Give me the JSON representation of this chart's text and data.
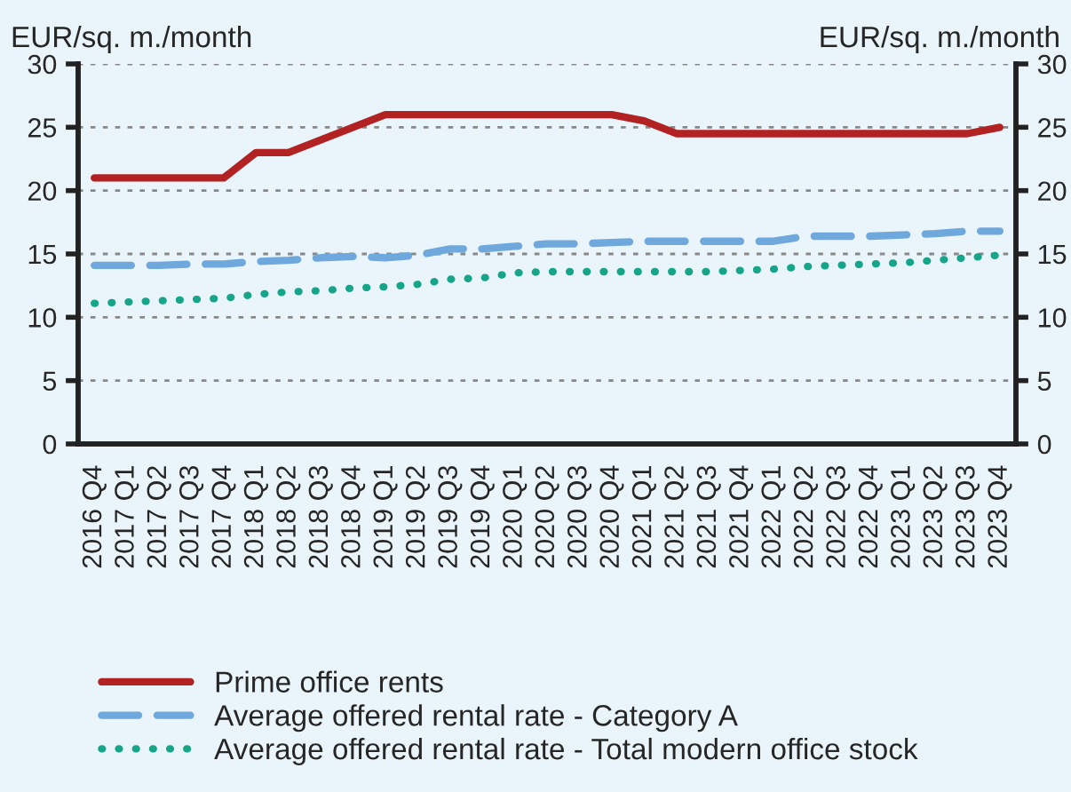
{
  "chart_data": {
    "type": "line",
    "ylabel": "EUR/sq. m./month",
    "y2label": "EUR/sq. m./month",
    "categories": [
      "2016 Q4",
      "2017 Q1",
      "2017 Q2",
      "2017 Q3",
      "2017 Q4",
      "2018 Q1",
      "2018 Q2",
      "2018 Q3",
      "2018 Q4",
      "2019 Q1",
      "2019 Q2",
      "2019 Q3",
      "2019 Q4",
      "2020 Q1",
      "2020 Q2",
      "2020 Q3",
      "2020 Q4",
      "2021 Q1",
      "2021 Q2",
      "2021 Q3",
      "2021 Q4",
      "2022 Q1",
      "2022 Q2",
      "2022 Q3",
      "2022 Q4",
      "2023 Q1",
      "2023 Q2",
      "2023 Q3",
      "2023 Q4"
    ],
    "series": [
      {
        "name": "Prime office rents",
        "color": "#b22222",
        "line_style": "solid",
        "values": [
          21,
          21,
          21,
          21,
          21,
          23,
          23,
          24,
          25,
          26,
          26,
          26,
          26,
          26,
          26,
          26,
          26,
          25.5,
          24.5,
          24.5,
          24.5,
          24.5,
          24.5,
          24.5,
          24.5,
          24.5,
          24.5,
          24.5,
          25
        ]
      },
      {
        "name": "Average offered rental rate - Category A",
        "color": "#6fa8dc",
        "line_style": "dashed",
        "values": [
          14.1,
          14.1,
          14.1,
          14.2,
          14.2,
          14.4,
          14.5,
          14.7,
          14.8,
          14.7,
          14.9,
          15.4,
          15.4,
          15.6,
          15.8,
          15.8,
          15.9,
          16.0,
          16.0,
          16.0,
          16.0,
          16.0,
          16.4,
          16.4,
          16.4,
          16.5,
          16.6,
          16.8,
          16.8
        ]
      },
      {
        "name": "Average offered rental rate - Total modern office stock",
        "color": "#17a589",
        "line_style": "dotted",
        "values": [
          11.1,
          11.2,
          11.3,
          11.4,
          11.5,
          11.8,
          12.0,
          12.1,
          12.3,
          12.4,
          12.6,
          13.0,
          13.1,
          13.5,
          13.6,
          13.6,
          13.6,
          13.6,
          13.6,
          13.6,
          13.7,
          13.8,
          14.0,
          14.1,
          14.2,
          14.3,
          14.5,
          14.7,
          14.9
        ]
      }
    ],
    "ylim": [
      0,
      30
    ],
    "yticks": [
      0,
      5,
      10,
      15,
      20,
      25,
      30
    ],
    "y2lim": [
      0,
      30
    ],
    "y2ticks": [
      0,
      5,
      10,
      15,
      20,
      25,
      30
    ],
    "grid": "y",
    "legend": "bottom"
  }
}
